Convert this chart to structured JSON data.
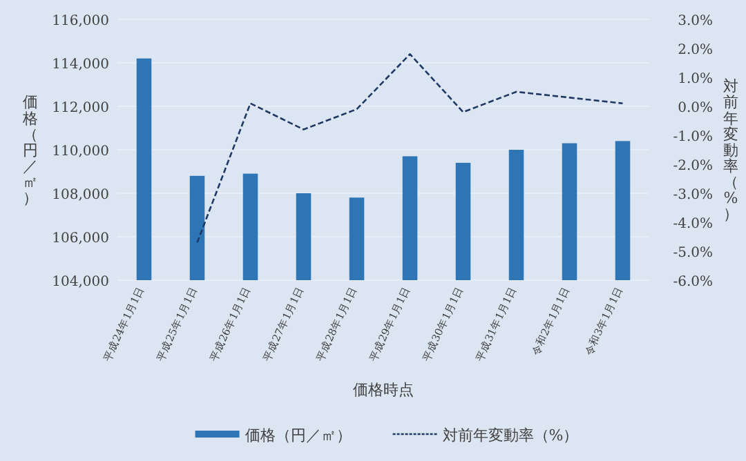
{
  "chart_data": {
    "type": "bar",
    "xlabel": "価格時点",
    "ylabel": "価格（円／㎡）",
    "y2label": "対前年変動率（%）",
    "categories": [
      "平成24年1月1日",
      "平成25年1月1日",
      "平成26年1月1日",
      "平成27年1月1日",
      "平成28年1月1日",
      "平成29年1月1日",
      "平成30年1月1日",
      "平成31年1月1日",
      "令和2年1月1日",
      "令和3年1月1日"
    ],
    "series": [
      {
        "name": "価格（円／㎡）",
        "color": "#2e75b6",
        "values": [
          114200,
          108800,
          108900,
          108000,
          107800,
          109700,
          109400,
          110000,
          110300,
          110400
        ]
      },
      {
        "name": "対前年変動率（%）",
        "type": "line",
        "axis": "y2",
        "color": "#203864",
        "line_style": "dashed",
        "values": [
          null,
          -4.7,
          0.1,
          -0.8,
          -0.1,
          1.8,
          -0.2,
          0.5,
          0.3,
          0.1
        ]
      }
    ],
    "ylim": [
      104000,
      116000
    ],
    "yticks": [
      {
        "value": 104000,
        "label": "104,000"
      },
      {
        "value": 106000,
        "label": "106,000"
      },
      {
        "value": 108000,
        "label": "108,000"
      },
      {
        "value": 110000,
        "label": "110,000"
      },
      {
        "value": 112000,
        "label": "112,000"
      },
      {
        "value": 114000,
        "label": "114,000"
      },
      {
        "value": 116000,
        "label": "116,000"
      }
    ],
    "y2lim": [
      -6,
      3
    ],
    "y2ticks": [
      {
        "value": -6,
        "label": "-6.0%"
      },
      {
        "value": -5,
        "label": "-5.0%"
      },
      {
        "value": -4,
        "label": "-4.0%"
      },
      {
        "value": -3,
        "label": "-3.0%"
      },
      {
        "value": -2,
        "label": "-2.0%"
      },
      {
        "value": -1,
        "label": "-1.0%"
      },
      {
        "value": 0,
        "label": "0.0%"
      },
      {
        "value": 1,
        "label": "1.0%"
      },
      {
        "value": 2,
        "label": "2.0%"
      },
      {
        "value": 3,
        "label": "3.0%"
      }
    ],
    "grid": "y",
    "legend": "bottom"
  }
}
